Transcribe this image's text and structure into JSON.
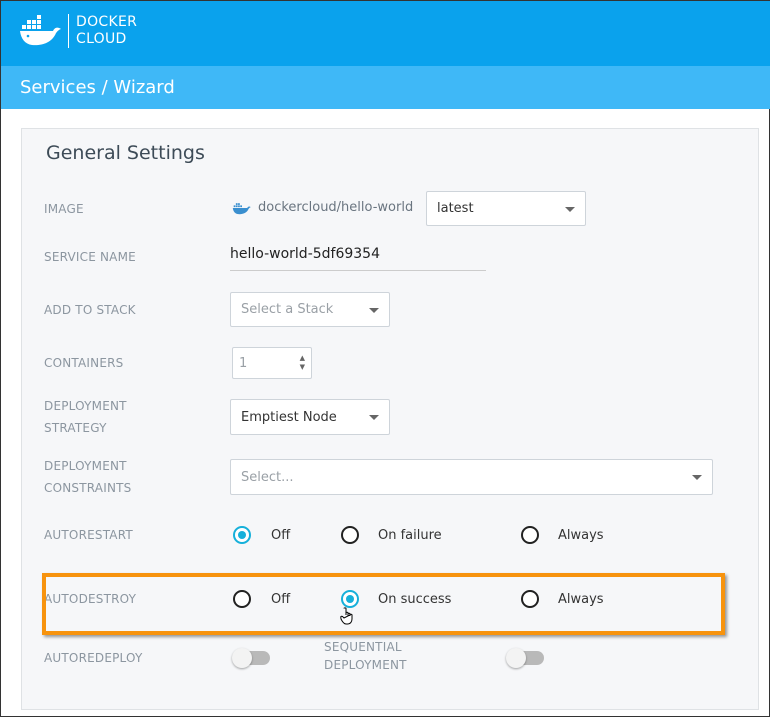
{
  "header": {
    "brand_line1": "DOCKER",
    "brand_line2": "CLOUD",
    "breadcrumb": "Services / Wizard"
  },
  "colors": {
    "header": "#0aa2ed",
    "subheader": "#3fb8f7",
    "accent": "#16b0da",
    "highlight": "#f7930e"
  },
  "form": {
    "title": "General Settings",
    "image": {
      "label": "IMAGE",
      "value": "dockercloud/hello-world",
      "tag": "latest"
    },
    "service_name": {
      "label": "SERVICE NAME",
      "value": "hello-world-5df69354"
    },
    "stack": {
      "label": "ADD TO STACK",
      "placeholder": "Select a Stack"
    },
    "containers": {
      "label": "CONTAINERS",
      "value": "1"
    },
    "strategy": {
      "label1": "DEPLOYMENT",
      "label2": "STRATEGY",
      "value": "Emptiest Node"
    },
    "constraints": {
      "label1": "DEPLOYMENT",
      "label2": "CONSTRAINTS",
      "placeholder": "Select..."
    },
    "autorestart": {
      "label": "AUTORESTART",
      "options": [
        "Off",
        "On failure",
        "Always"
      ],
      "selected": "Off"
    },
    "autodestroy": {
      "label": "AUTODESTROY",
      "options": [
        "Off",
        "On success",
        "Always"
      ],
      "selected": "On success"
    },
    "autoredeploy": {
      "label": "AUTOREDEPLOY",
      "on": false
    },
    "sequential": {
      "label1": "SEQUENTIAL",
      "label2": "DEPLOYMENT",
      "on": false
    }
  }
}
